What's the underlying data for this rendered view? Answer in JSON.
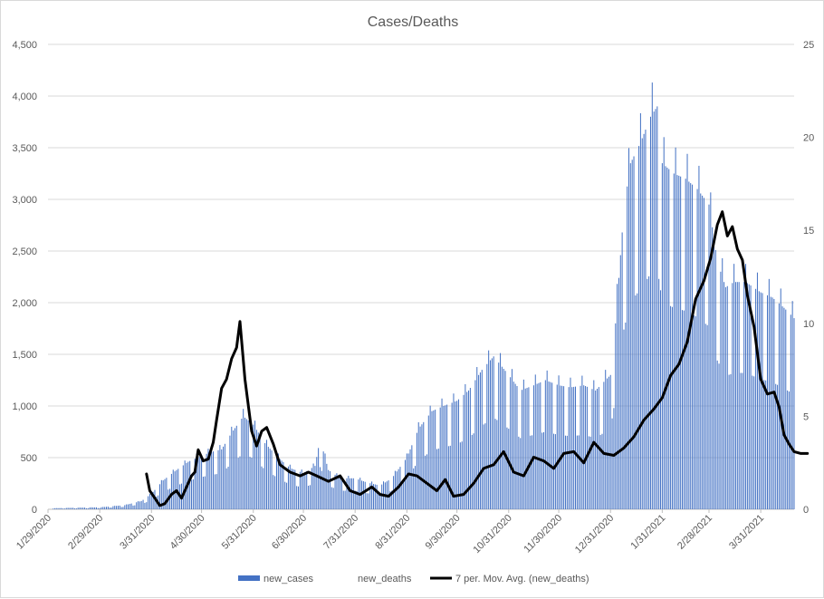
{
  "chart_data": {
    "type": "bar+line",
    "title": "Cases/Deaths",
    "y_left": {
      "min": 0,
      "max": 4500,
      "ticks": [
        "0",
        "500",
        "1,000",
        "1,500",
        "2,000",
        "2,500",
        "3,000",
        "3,500",
        "4,000",
        "4,500"
      ]
    },
    "y_right": {
      "min": 0,
      "max": 25,
      "ticks": [
        "0",
        "5",
        "10",
        "15",
        "20",
        "25"
      ]
    },
    "x_start": "1/29/2020",
    "x_end": "4/20/2021",
    "x_ticks": [
      "1/29/2020",
      "2/29/2020",
      "3/31/2020",
      "4/30/2020",
      "5/31/2020",
      "6/30/2020",
      "7/31/2020",
      "8/31/2020",
      "9/30/2020",
      "10/31/2020",
      "11/30/2020",
      "12/31/2020",
      "1/31/2021",
      "2/28/2021",
      "3/31/2021"
    ],
    "grid": "horizontal",
    "legend_position": "bottom",
    "series": [
      {
        "name": "new_cases",
        "axis": "left",
        "type": "bar",
        "color": "#4472c4",
        "points": [
          [
            "2/1/2020",
            10
          ],
          [
            "2/15/2020",
            15
          ],
          [
            "3/1/2020",
            20
          ],
          [
            "3/15/2020",
            40
          ],
          [
            "3/25/2020",
            80
          ],
          [
            "3/31/2020",
            150
          ],
          [
            "4/7/2020",
            280
          ],
          [
            "4/15/2020",
            380
          ],
          [
            "4/22/2020",
            460
          ],
          [
            "4/30/2020",
            520
          ],
          [
            "5/7/2020",
            560
          ],
          [
            "5/12/2020",
            580
          ],
          [
            "5/18/2020",
            740
          ],
          [
            "5/25/2020",
            900
          ],
          [
            "5/31/2020",
            820
          ],
          [
            "6/7/2020",
            640
          ],
          [
            "6/15/2020",
            500
          ],
          [
            "6/22/2020",
            400
          ],
          [
            "6/30/2020",
            350
          ],
          [
            "7/7/2020",
            420
          ],
          [
            "7/10/2020",
            680
          ],
          [
            "7/15/2020",
            380
          ],
          [
            "7/22/2020",
            300
          ],
          [
            "7/31/2020",
            300
          ],
          [
            "8/7/2020",
            260
          ],
          [
            "8/15/2020",
            230
          ],
          [
            "8/22/2020",
            300
          ],
          [
            "8/31/2020",
            500
          ],
          [
            "9/7/2020",
            780
          ],
          [
            "9/15/2020",
            950
          ],
          [
            "9/22/2020",
            1000
          ],
          [
            "9/30/2020",
            1050
          ],
          [
            "10/7/2020",
            1150
          ],
          [
            "10/15/2020",
            1350
          ],
          [
            "10/22/2020",
            1480
          ],
          [
            "10/31/2020",
            1300
          ],
          [
            "11/7/2020",
            1150
          ],
          [
            "11/15/2020",
            1200
          ],
          [
            "11/22/2020",
            1250
          ],
          [
            "11/30/2020",
            1200
          ],
          [
            "12/7/2020",
            1180
          ],
          [
            "12/15/2020",
            1200
          ],
          [
            "12/22/2020",
            1150
          ],
          [
            "12/31/2020",
            1300
          ],
          [
            "1/3/2021",
            1800
          ],
          [
            "1/8/2021",
            2900
          ],
          [
            "1/12/2021",
            3350
          ],
          [
            "1/18/2021",
            3550
          ],
          [
            "1/24/2021",
            3800
          ],
          [
            "1/28/2021",
            3900
          ],
          [
            "1/31/2021",
            3350
          ],
          [
            "2/7/2021",
            3250
          ],
          [
            "2/14/2021",
            3200
          ],
          [
            "2/21/2021",
            3100
          ],
          [
            "2/28/2021",
            2950
          ],
          [
            "3/5/2021",
            2400
          ],
          [
            "3/10/2021",
            2150
          ],
          [
            "3/15/2021",
            2200
          ],
          [
            "3/22/2021",
            2200
          ],
          [
            "3/31/2021",
            2100
          ],
          [
            "4/7/2021",
            2050
          ],
          [
            "4/14/2021",
            1950
          ],
          [
            "4/20/2021",
            1850
          ]
        ]
      },
      {
        "name": "new_deaths",
        "axis": "right",
        "type": "bar",
        "color": "#ed7d31",
        "points": []
      },
      {
        "name": "7 per. Mov. Avg. (new_deaths)",
        "axis": "right",
        "type": "line",
        "color": "#000000",
        "points": [
          [
            "3/28/2020",
            1.9
          ],
          [
            "3/30/2020",
            1.0
          ],
          [
            "4/2/2020",
            0.6
          ],
          [
            "4/5/2020",
            0.2
          ],
          [
            "4/8/2020",
            0.3
          ],
          [
            "4/12/2020",
            0.8
          ],
          [
            "4/15/2020",
            1.0
          ],
          [
            "4/18/2020",
            0.6
          ],
          [
            "4/21/2020",
            1.2
          ],
          [
            "4/24/2020",
            1.8
          ],
          [
            "4/26/2020",
            2.0
          ],
          [
            "4/28/2020",
            3.2
          ],
          [
            "5/1/2020",
            2.6
          ],
          [
            "5/4/2020",
            2.7
          ],
          [
            "5/7/2020",
            3.6
          ],
          [
            "5/9/2020",
            4.8
          ],
          [
            "5/12/2020",
            6.5
          ],
          [
            "5/15/2020",
            7.0
          ],
          [
            "5/18/2020",
            8.1
          ],
          [
            "5/21/2020",
            8.7
          ],
          [
            "5/23/2020",
            10.1
          ],
          [
            "5/26/2020",
            7.0
          ],
          [
            "5/30/2020",
            4.2
          ],
          [
            "6/2/2020",
            3.4
          ],
          [
            "6/5/2020",
            4.2
          ],
          [
            "6/8/2020",
            4.4
          ],
          [
            "6/12/2020",
            3.5
          ],
          [
            "6/16/2020",
            2.4
          ],
          [
            "6/22/2020",
            2.0
          ],
          [
            "6/28/2020",
            1.8
          ],
          [
            "7/3/2020",
            2.0
          ],
          [
            "7/8/2020",
            1.8
          ],
          [
            "7/15/2020",
            1.5
          ],
          [
            "7/22/2020",
            1.8
          ],
          [
            "7/28/2020",
            1.0
          ],
          [
            "8/3/2020",
            0.8
          ],
          [
            "8/10/2020",
            1.2
          ],
          [
            "8/15/2020",
            0.8
          ],
          [
            "8/20/2020",
            0.7
          ],
          [
            "8/26/2020",
            1.2
          ],
          [
            "9/1/2020",
            1.9
          ],
          [
            "9/6/2020",
            1.8
          ],
          [
            "9/12/2020",
            1.4
          ],
          [
            "9/18/2020",
            1.0
          ],
          [
            "9/23/2020",
            1.6
          ],
          [
            "9/28/2020",
            0.7
          ],
          [
            "10/4/2020",
            0.8
          ],
          [
            "10/10/2020",
            1.4
          ],
          [
            "10/16/2020",
            2.2
          ],
          [
            "10/22/2020",
            2.4
          ],
          [
            "10/28/2020",
            3.1
          ],
          [
            "11/3/2020",
            2.0
          ],
          [
            "11/9/2020",
            1.8
          ],
          [
            "11/15/2020",
            2.8
          ],
          [
            "11/21/2020",
            2.6
          ],
          [
            "11/27/2020",
            2.2
          ],
          [
            "12/3/2020",
            3.0
          ],
          [
            "12/9/2020",
            3.1
          ],
          [
            "12/15/2020",
            2.5
          ],
          [
            "12/21/2020",
            3.6
          ],
          [
            "12/27/2020",
            3.0
          ],
          [
            "1/2/2021",
            2.9
          ],
          [
            "1/8/2021",
            3.3
          ],
          [
            "1/14/2021",
            3.9
          ],
          [
            "1/20/2021",
            4.8
          ],
          [
            "1/26/2021",
            5.4
          ],
          [
            "1/31/2021",
            6.0
          ],
          [
            "2/5/2021",
            7.2
          ],
          [
            "2/10/2021",
            7.8
          ],
          [
            "2/15/2021",
            9.0
          ],
          [
            "2/20/2021",
            11.3
          ],
          [
            "2/25/2021",
            12.3
          ],
          [
            "3/1/2021",
            13.5
          ],
          [
            "3/5/2021",
            15.3
          ],
          [
            "3/8/2021",
            16.0
          ],
          [
            "3/11/2021",
            14.7
          ],
          [
            "3/14/2021",
            15.2
          ],
          [
            "3/17/2021",
            14.0
          ],
          [
            "3/20/2021",
            13.4
          ],
          [
            "3/23/2021",
            11.5
          ],
          [
            "3/27/2021",
            9.8
          ],
          [
            "3/31/2021",
            7.0
          ],
          [
            "4/4/2021",
            6.2
          ],
          [
            "4/8/2021",
            6.3
          ],
          [
            "4/11/2021",
            5.5
          ],
          [
            "4/14/2021",
            4.0
          ],
          [
            "4/17/2021",
            3.5
          ],
          [
            "4/20/2021",
            3.1
          ],
          [
            "4/24/2021",
            3.0
          ],
          [
            "4/28/2021",
            3.0
          ]
        ]
      }
    ]
  }
}
